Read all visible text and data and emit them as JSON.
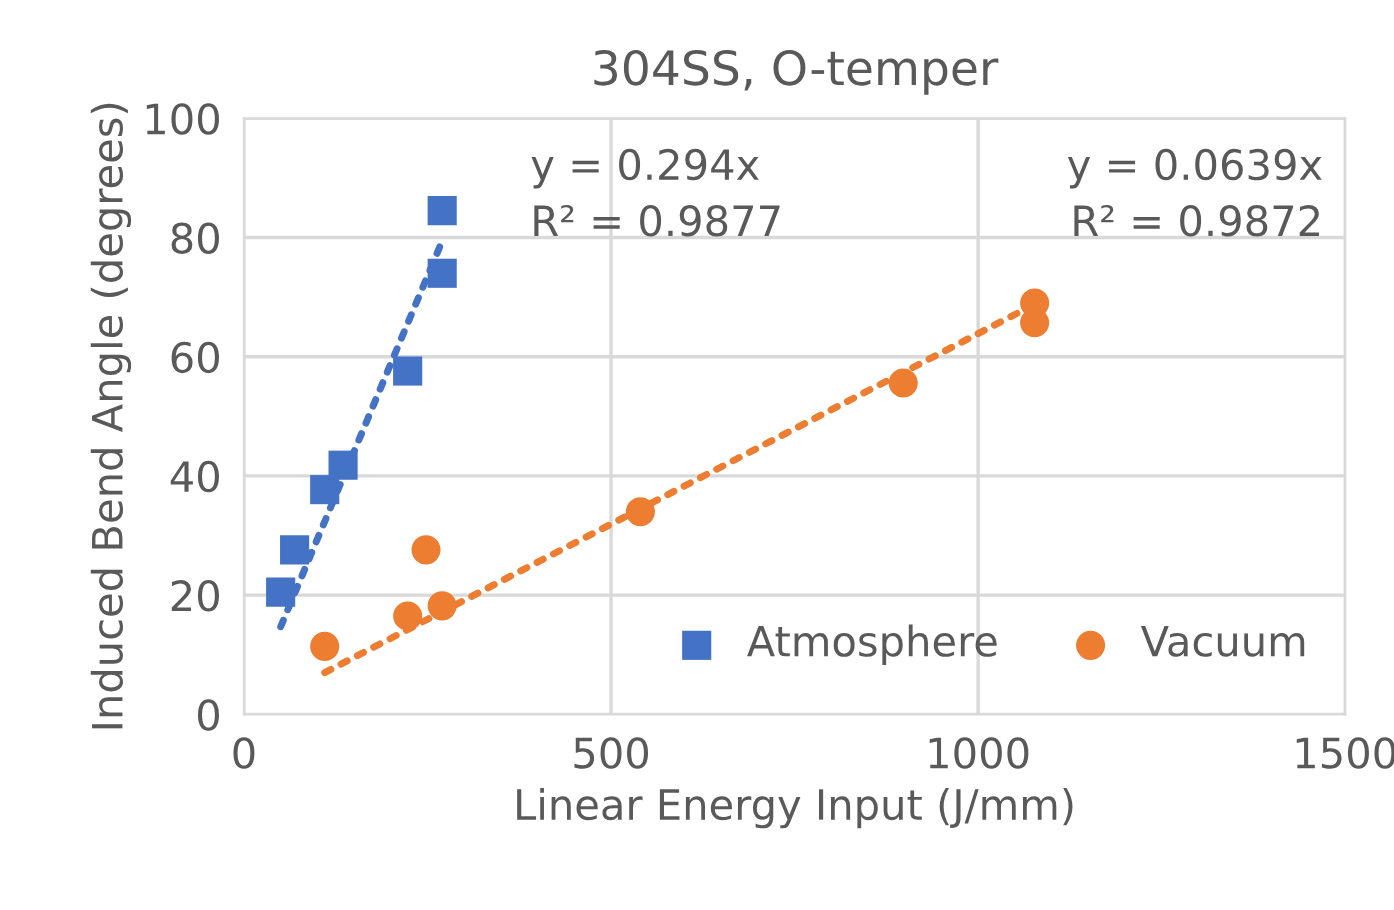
{
  "chart_data": {
    "type": "scatter",
    "title": "304SS, O-temper",
    "xlabel": "Linear Energy Input (J/mm)",
    "ylabel": "Induced Bend Angle (degrees)",
    "xlim": [
      0,
      1500
    ],
    "xticks": [
      0,
      500,
      1000,
      1500
    ],
    "ylim": [
      0,
      100
    ],
    "yticks": [
      0,
      20,
      40,
      60,
      80,
      100
    ],
    "grid": true,
    "legend": "bottom right",
    "series": [
      {
        "name": "Atmosphere",
        "color": "#4472c4",
        "marker": "square",
        "x": [
          50,
          69,
          110,
          135,
          223,
          270,
          270
        ],
        "values": [
          20.5,
          27.6,
          37.7,
          41.8,
          57.6,
          74,
          84.5
        ]
      },
      {
        "name": "Vacuum",
        "color": "#ed7d31",
        "marker": "circle",
        "x": [
          110,
          223,
          248,
          270,
          540,
          898,
          1077,
          1077
        ],
        "values": [
          11.4,
          16.5,
          27.6,
          18.2,
          34,
          55.6,
          69,
          65.7
        ]
      },
      {
        "type": "line",
        "color": "#4472c4",
        "line_style": "dotted",
        "marker": "none",
        "x": [
          50,
          272
        ],
        "values": [
          14.7,
          80
        ]
      },
      {
        "type": "line",
        "color": "#ed7d31",
        "line_style": "dotted",
        "marker": "none",
        "x": [
          110,
          1077
        ],
        "values": [
          7.0,
          68.8
        ]
      }
    ],
    "annotations": [
      "y = 0.294x\nR² = 0.9877",
      "y = 0.0639x\nR² = 0.9872"
    ]
  }
}
